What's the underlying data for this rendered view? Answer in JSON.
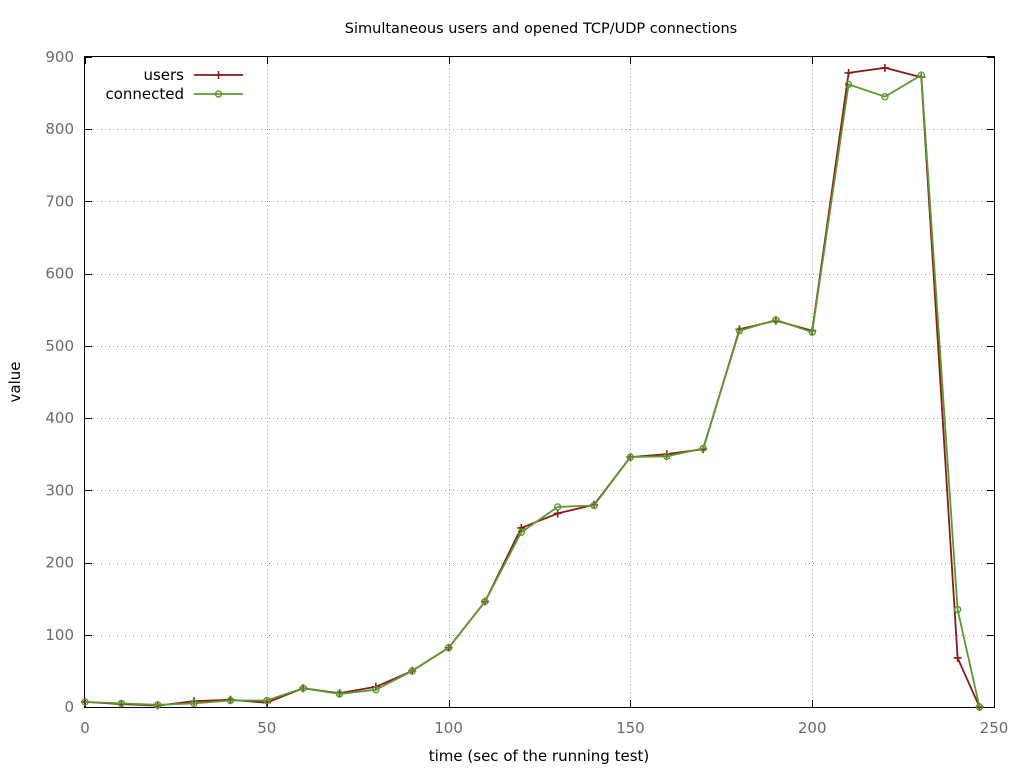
{
  "chart_data": {
    "type": "line",
    "title": "Simultaneous users and opened TCP/UDP connections",
    "xlabel": "time (sec of the running test)",
    "ylabel": "value",
    "xlim": [
      0,
      250
    ],
    "ylim": [
      0,
      900
    ],
    "xticks": [
      0,
      50,
      100,
      150,
      200,
      250
    ],
    "yticks": [
      0,
      100,
      200,
      300,
      400,
      500,
      600,
      700,
      800,
      900
    ],
    "grid": true,
    "legend_position": "top-left",
    "series": [
      {
        "name": "users",
        "color": "#8b1a1a",
        "marker": "plus",
        "points": [
          [
            0,
            7
          ],
          [
            10,
            4
          ],
          [
            20,
            2
          ],
          [
            30,
            8
          ],
          [
            40,
            10
          ],
          [
            50,
            6
          ],
          [
            60,
            26
          ],
          [
            70,
            19
          ],
          [
            80,
            28
          ],
          [
            90,
            50
          ],
          [
            100,
            82
          ],
          [
            110,
            146
          ],
          [
            120,
            248
          ],
          [
            130,
            268
          ],
          [
            140,
            280
          ],
          [
            150,
            346
          ],
          [
            160,
            350
          ],
          [
            170,
            357
          ],
          [
            180,
            523
          ],
          [
            190,
            535
          ],
          [
            200,
            521
          ],
          [
            210,
            878
          ],
          [
            220,
            885
          ],
          [
            230,
            872
          ],
          [
            240,
            68
          ],
          [
            246,
            0
          ]
        ]
      },
      {
        "name": "connected",
        "color": "#5b9a32",
        "marker": "circle",
        "points": [
          [
            0,
            7
          ],
          [
            10,
            5
          ],
          [
            20,
            3
          ],
          [
            30,
            5
          ],
          [
            40,
            9
          ],
          [
            50,
            9
          ],
          [
            60,
            26
          ],
          [
            70,
            18
          ],
          [
            80,
            24
          ],
          [
            90,
            50
          ],
          [
            100,
            82
          ],
          [
            110,
            146
          ],
          [
            120,
            242
          ],
          [
            130,
            277
          ],
          [
            140,
            279
          ],
          [
            150,
            346
          ],
          [
            160,
            347
          ],
          [
            170,
            358
          ],
          [
            180,
            521
          ],
          [
            190,
            536
          ],
          [
            200,
            519
          ],
          [
            210,
            862
          ],
          [
            220,
            845
          ],
          [
            230,
            875
          ],
          [
            240,
            135
          ],
          [
            246,
            0
          ]
        ]
      }
    ]
  }
}
